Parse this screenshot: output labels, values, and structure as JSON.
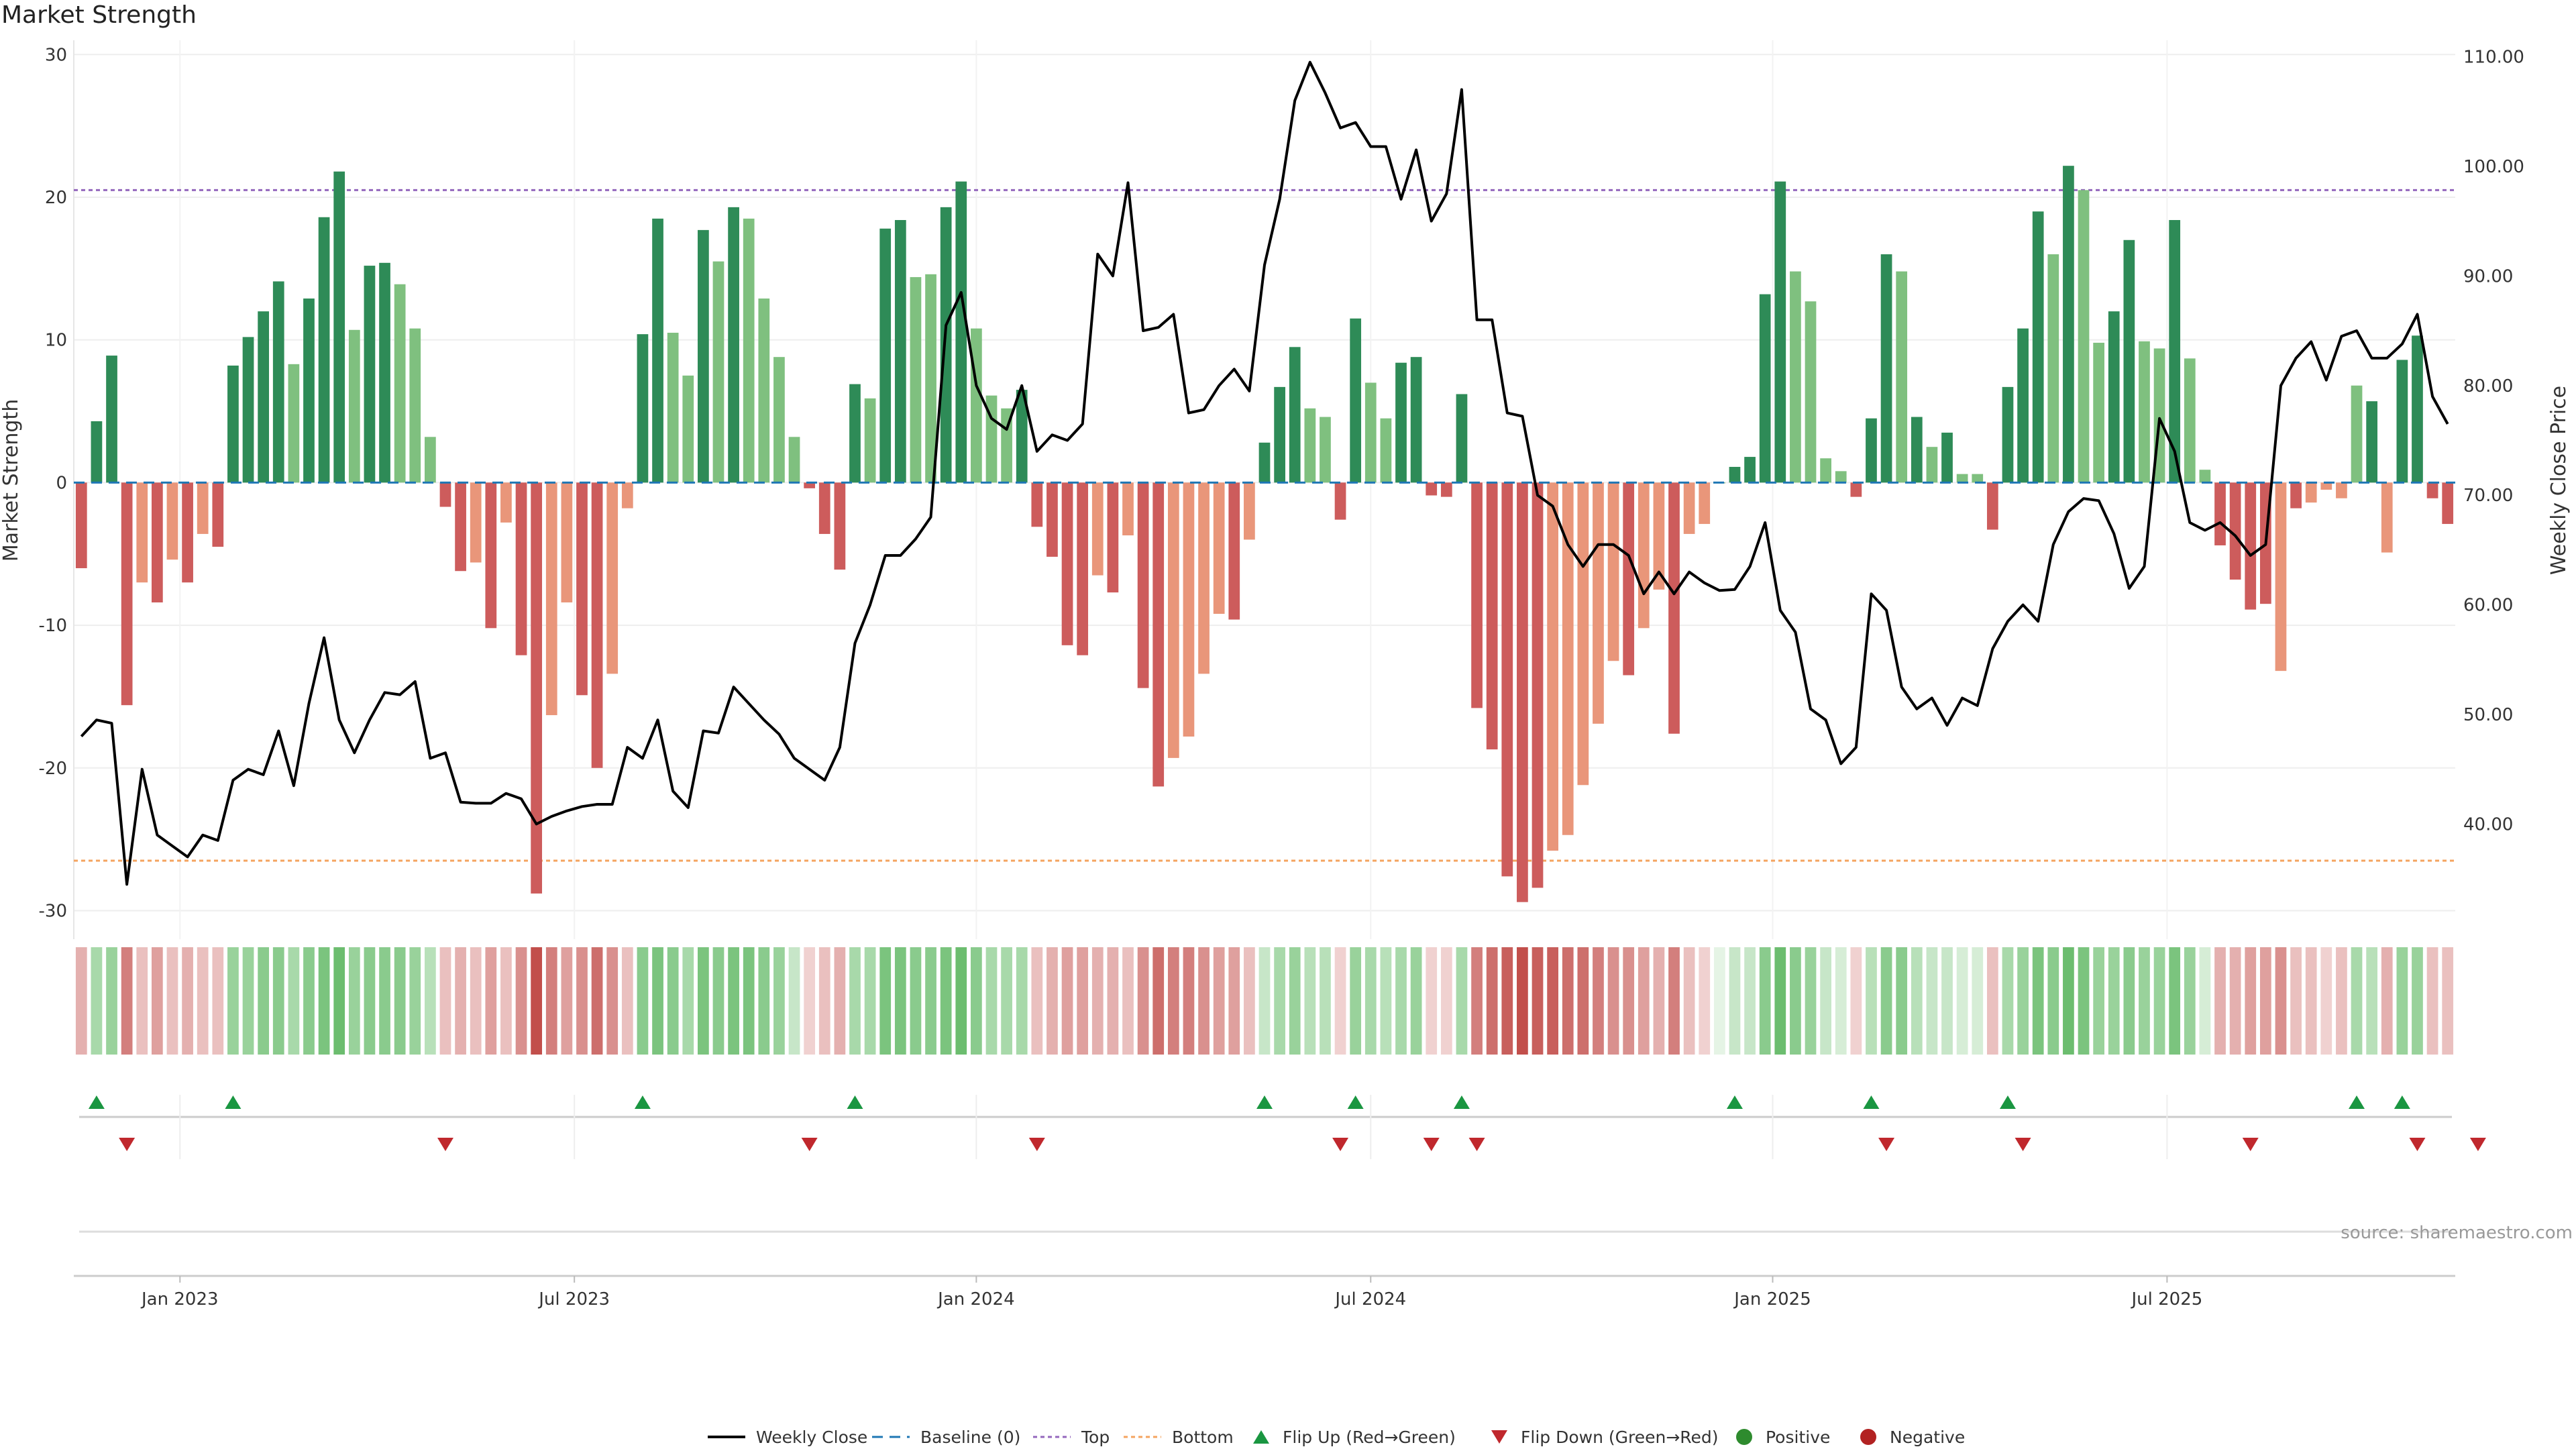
{
  "page_title": "Market Strength",
  "source_text": "source: sharemaestro.com",
  "colors": {
    "pos_dark": "#2e8b57",
    "pos_light": "#7fc07f",
    "neg_dark": "#cd5c5c",
    "neg_light": "#e9967a",
    "line": "#000000",
    "top": "#9467bd",
    "bottom": "#f4a460",
    "baseline": "#1f77b4",
    "flip_up": "#1a9641",
    "flip_down": "#c0282d",
    "grid": "#eeeeee"
  },
  "chart_data": {
    "type": "bar",
    "title": "Market Strength",
    "ylabel": "Market Strength",
    "ylabel_right": "Weekly Close Price",
    "ylim": [
      -32,
      31
    ],
    "ylim_right": [
      29.5,
      111.5
    ],
    "yticks": [
      30,
      20,
      10,
      0,
      -10,
      -20,
      -30
    ],
    "yticks_right": [
      "110.00",
      "100.00",
      "90.00",
      "80.00",
      "70.00",
      "60.00",
      "50.00",
      "40.00"
    ],
    "x_tick_labels": [
      "Jan 2023",
      "Jul 2023",
      "Jan 2024",
      "Jul 2024",
      "Jan 2025",
      "Jul 2025"
    ],
    "x_tick_index": [
      7,
      33,
      59.5,
      85.5,
      112,
      138
    ],
    "top_threshold": 20.5,
    "bottom_threshold": -26.5,
    "strength": [
      -6,
      4.3,
      8.9,
      -15.6,
      -7,
      -8.4,
      -5.4,
      -7,
      -3.6,
      -4.5,
      8.2,
      10.2,
      12,
      14.1,
      8.3,
      12.9,
      18.6,
      21.8,
      10.7,
      15.2,
      15.4,
      13.9,
      10.8,
      3.2,
      -1.7,
      -6.2,
      -5.6,
      -10.2,
      -2.8,
      -12.1,
      -28.8,
      -16.3,
      -8.4,
      -14.9,
      -20,
      -13.4,
      -1.8,
      10.4,
      18.5,
      10.5,
      7.5,
      17.7,
      15.5,
      19.3,
      18.5,
      12.9,
      8.8,
      3.2,
      -0.4,
      -3.6,
      -6.1,
      6.9,
      5.9,
      17.8,
      18.4,
      14.4,
      14.6,
      19.3,
      21.1,
      10.8,
      6.1,
      5.2,
      6.5,
      -3.1,
      -5.2,
      -11.4,
      -12.1,
      -6.5,
      -7.7,
      -3.7,
      -14.4,
      -21.3,
      -19.3,
      -17.8,
      -13.4,
      -9.2,
      -9.6,
      -4,
      2.8,
      6.7,
      9.5,
      5.2,
      4.6,
      -2.6,
      11.5,
      7,
      4.5,
      8.4,
      8.8,
      -0.9,
      -1,
      6.2,
      -15.8,
      -18.7,
      -27.6,
      -29.4,
      -28.4,
      -25.8,
      -24.7,
      -21.2,
      -16.9,
      -12.5,
      -13.5,
      -10.2,
      -7.5,
      -17.6,
      -3.6,
      -2.9,
      0,
      1.1,
      1.8,
      13.2,
      21.1,
      14.8,
      12.7,
      1.7,
      0.8,
      -1,
      4.5,
      16,
      14.8,
      4.6,
      2.5,
      3.5,
      0.6,
      0.6,
      -3.3,
      6.7,
      10.8,
      19,
      16,
      22.2,
      20.5,
      9.8,
      12,
      17,
      9.9,
      9.4,
      18.4,
      8.7,
      0.9,
      -4.4,
      -6.8,
      -8.9,
      -8.5,
      -13.2,
      -1.8,
      -1.4,
      -0.5,
      -1.1,
      6.8,
      5.7,
      -4.9,
      8.6,
      10.3,
      -1.1,
      -2.9
    ],
    "strength_shade": [
      "d",
      "d",
      "d",
      "d",
      "l",
      "d",
      "l",
      "d",
      "l",
      "d",
      "d",
      "d",
      "d",
      "d",
      "l",
      "d",
      "d",
      "d",
      "l",
      "d",
      "d",
      "l",
      "l",
      "l",
      "d",
      "d",
      "l",
      "d",
      "l",
      "d",
      "d",
      "l",
      "l",
      "d",
      "d",
      "l",
      "l",
      "d",
      "d",
      "l",
      "l",
      "d",
      "l",
      "d",
      "l",
      "l",
      "l",
      "l",
      "d",
      "d",
      "d",
      "d",
      "l",
      "d",
      "d",
      "l",
      "l",
      "d",
      "d",
      "l",
      "l",
      "l",
      "d",
      "d",
      "d",
      "d",
      "d",
      "l",
      "d",
      "l",
      "d",
      "d",
      "l",
      "l",
      "l",
      "l",
      "d",
      "l",
      "d",
      "d",
      "d",
      "l",
      "l",
      "d",
      "d",
      "l",
      "l",
      "d",
      "d",
      "d",
      "d",
      "d",
      "d",
      "d",
      "d",
      "d",
      "d",
      "l",
      "l",
      "l",
      "l",
      "l",
      "d",
      "l",
      "l",
      "d",
      "l",
      "l",
      "d",
      "d",
      "d",
      "d",
      "d",
      "l",
      "l",
      "l",
      "l",
      "d",
      "d",
      "d",
      "l",
      "d",
      "l",
      "d",
      "l",
      "l",
      "d",
      "d",
      "d",
      "d",
      "l",
      "d",
      "l",
      "l",
      "d",
      "d",
      "l",
      "l",
      "d",
      "l",
      "l",
      "d",
      "d",
      "d",
      "d",
      "l",
      "d",
      "l",
      "l",
      "l",
      "l",
      "d",
      "l",
      "d",
      "d",
      "d",
      "d"
    ],
    "weekly_close": [
      48,
      49.5,
      49.2,
      34.5,
      45,
      39,
      38,
      37,
      39,
      38.5,
      44,
      45,
      44.5,
      48.5,
      43.5,
      51,
      57,
      49.5,
      46.5,
      49.5,
      52,
      51.8,
      53,
      46,
      46.5,
      42,
      41.9,
      41.9,
      42.8,
      42.3,
      40,
      40.7,
      41.2,
      41.6,
      41.8,
      41.8,
      47,
      46,
      49.5,
      43,
      41.5,
      48.5,
      48.3,
      52.5,
      51,
      49.5,
      48.2,
      46,
      45,
      44,
      47,
      56.5,
      60,
      64.5,
      64.5,
      66,
      68,
      85.5,
      88.5,
      80,
      77,
      76,
      80,
      74,
      75.5,
      75,
      76.5,
      92,
      90,
      98.5,
      85,
      85.3,
      86.5,
      77.5,
      77.8,
      80,
      81.5,
      79.5,
      91,
      97,
      106,
      109.5,
      106.7,
      103.5,
      104,
      101.8,
      101.8,
      97,
      101.5,
      95,
      97.5,
      107,
      86,
      86,
      77.5,
      77.2,
      70,
      69,
      65.5,
      63.5,
      65.5,
      65.5,
      64.5,
      61,
      63,
      61,
      63,
      62,
      61.3,
      61.4,
      63.5,
      67.5,
      59.5,
      57.5,
      50.5,
      49.5,
      45.5,
      47,
      61,
      59.5,
      52.5,
      50.5,
      51.5,
      49,
      51.5,
      50.8,
      56,
      58.5,
      60,
      58.5,
      65.5,
      68.5,
      69.7,
      69.5,
      66.5,
      61.5,
      63.5,
      77,
      74,
      67.5,
      66.8,
      67.5,
      66.3,
      64.5,
      65.5,
      80,
      82.5,
      84,
      80.5,
      84.5,
      85,
      82.5,
      82.5,
      83.8,
      86.5,
      79,
      76.5
    ],
    "heat_strip": [
      -0.4,
      0.5,
      0.6,
      -0.7,
      -0.3,
      -0.5,
      -0.3,
      -0.4,
      -0.3,
      -0.3,
      0.6,
      0.6,
      0.7,
      0.7,
      0.5,
      0.7,
      0.8,
      0.9,
      0.6,
      0.7,
      0.7,
      0.7,
      0.6,
      0.4,
      -0.3,
      -0.4,
      -0.3,
      -0.5,
      -0.3,
      -0.6,
      -1,
      -0.7,
      -0.5,
      -0.6,
      -0.8,
      -0.6,
      -0.3,
      0.7,
      0.8,
      0.7,
      0.5,
      0.8,
      0.7,
      0.8,
      0.8,
      0.7,
      0.6,
      0.3,
      -0.2,
      -0.3,
      -0.4,
      0.5,
      0.5,
      0.8,
      0.8,
      0.7,
      0.7,
      0.8,
      0.9,
      0.7,
      0.5,
      0.5,
      0.5,
      -0.3,
      -0.4,
      -0.5,
      -0.5,
      -0.4,
      -0.4,
      -0.3,
      -0.6,
      -0.8,
      -0.7,
      -0.7,
      -0.6,
      -0.5,
      -0.5,
      -0.3,
      0.3,
      0.5,
      0.6,
      0.4,
      0.4,
      -0.2,
      0.6,
      0.5,
      0.4,
      0.5,
      0.6,
      -0.2,
      -0.2,
      0.5,
      -0.7,
      -0.8,
      -0.9,
      -1,
      -0.9,
      -0.9,
      -0.8,
      -0.8,
      -0.7,
      -0.6,
      -0.6,
      -0.5,
      -0.4,
      -0.7,
      -0.3,
      -0.2,
      0.1,
      0.3,
      0.3,
      0.7,
      0.9,
      0.7,
      0.6,
      0.3,
      0.2,
      -0.2,
      0.4,
      0.7,
      0.7,
      0.4,
      0.3,
      0.3,
      0.2,
      0.2,
      -0.3,
      0.5,
      0.6,
      0.8,
      0.7,
      0.9,
      0.8,
      0.6,
      0.6,
      0.7,
      0.6,
      0.6,
      0.8,
      0.6,
      0.2,
      -0.4,
      -0.4,
      -0.5,
      -0.5,
      -0.6,
      -0.3,
      -0.3,
      -0.2,
      -0.3,
      0.5,
      0.4,
      -0.4,
      0.6,
      0.6,
      -0.3,
      -0.3
    ],
    "flip_up_index": [
      1,
      10,
      37,
      51,
      78,
      84,
      91,
      109,
      118,
      127,
      150,
      153
    ],
    "flip_down_index": [
      3,
      24,
      48,
      63,
      83,
      89,
      92,
      119,
      128,
      143,
      154,
      158
    ]
  },
  "legend": {
    "weekly_close": "Weekly Close",
    "baseline": "Baseline (0)",
    "top": "Top",
    "bottom": "Bottom",
    "flip_up": "Flip Up (Red→Green)",
    "flip_down": "Flip Down (Green→Red)",
    "positive": "Positive",
    "negative": "Negative"
  }
}
